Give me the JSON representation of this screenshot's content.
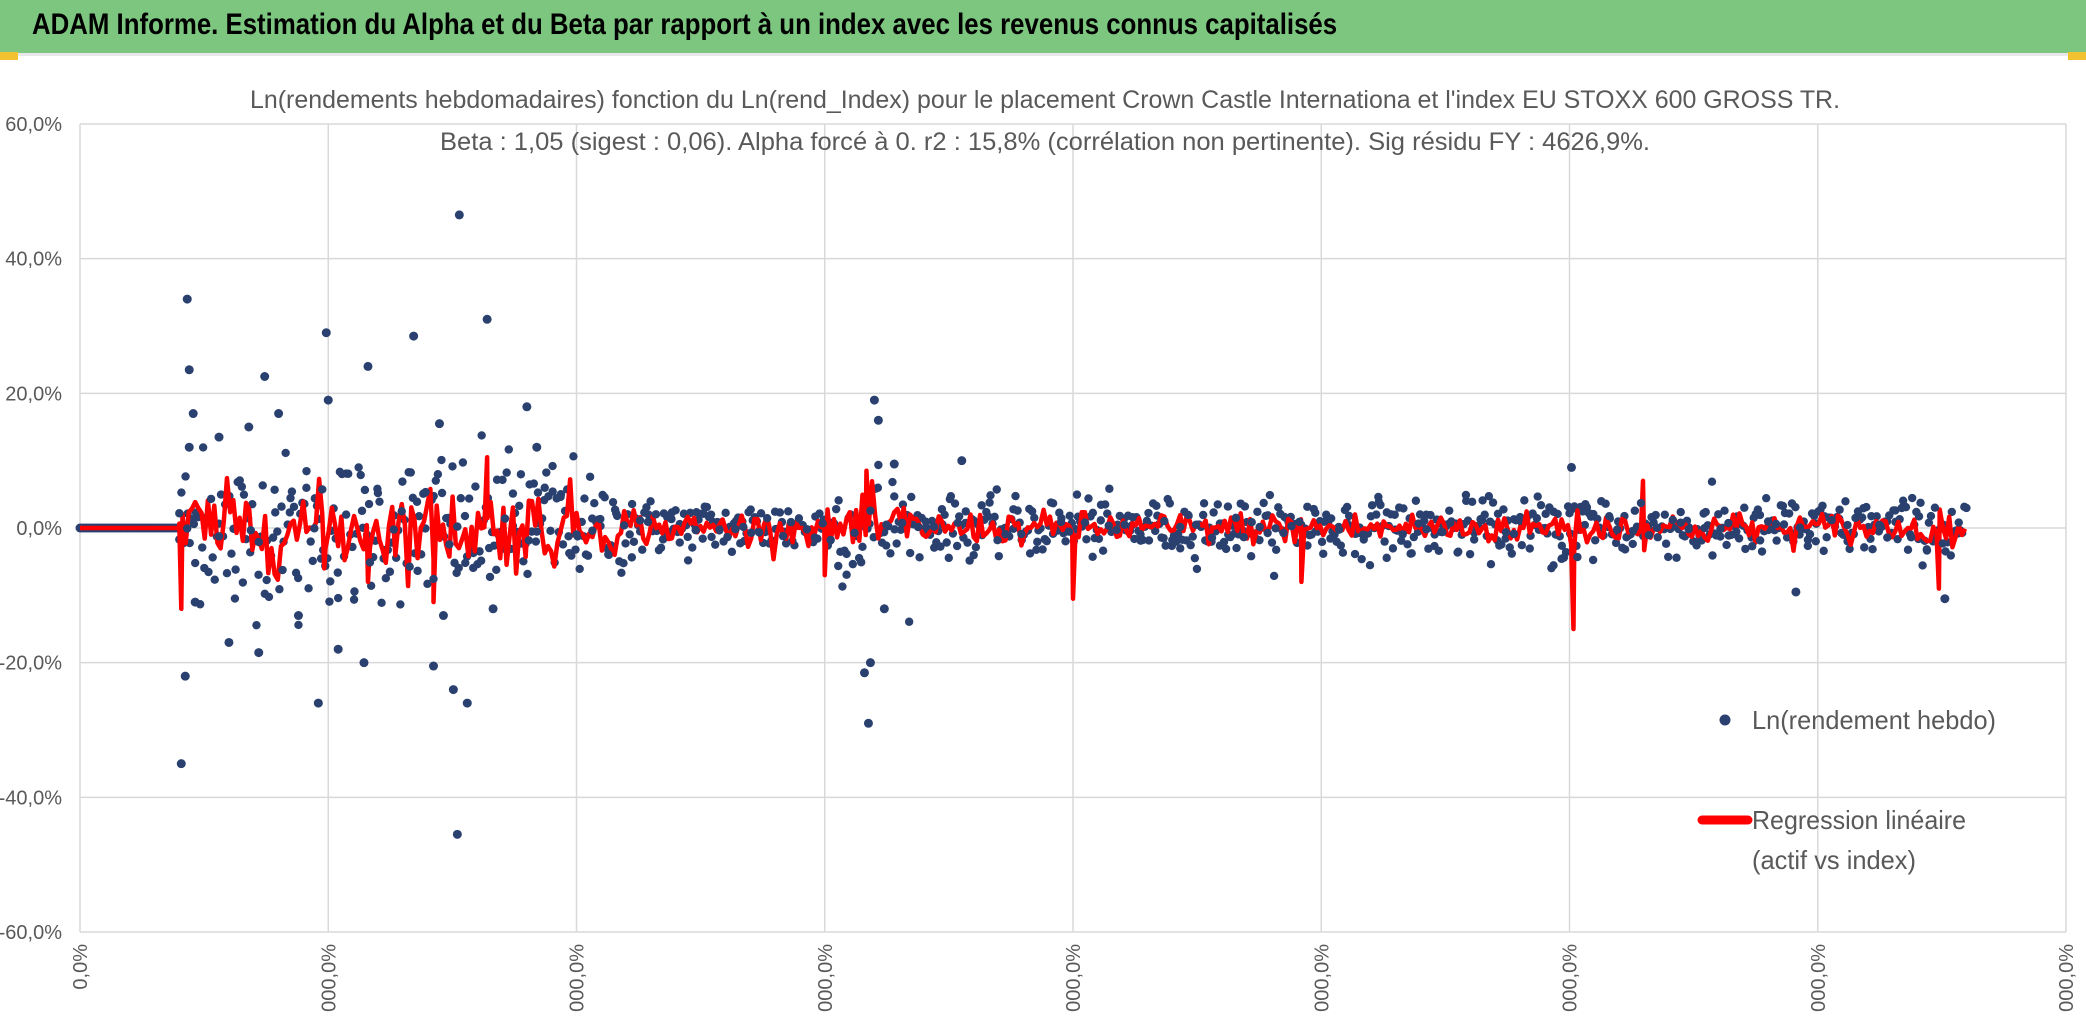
{
  "banner": {
    "title": "ADAM Informe. Estimation du Alpha et du Beta par rapport à un index avec les revenus connus capitalisés",
    "background": "#7dc67f",
    "corner_color": "#f2c230"
  },
  "chart_data": {
    "type": "scatter",
    "title": "Ln(rendements hebdomadaires) fonction du Ln(rend_Index) pour le placement Crown Castle Internationa et l'index EU STOXX 600 GROSS TR.",
    "subtitle": "Beta : 1,05 (sigest : 0,06). Alpha forcé à 0. r2 : 15,8% (corrélation non pertinente). Sig résidu FY : 4626,9%.",
    "xlabel": "",
    "ylabel": "",
    "ylim": [
      -60,
      60
    ],
    "y_ticks": [
      "60,0%",
      "40,0%",
      "20,0%",
      "0,0%",
      "-20,0%",
      "-40,0%",
      "-60,0%"
    ],
    "x_ticks": [
      "0,0%",
      "000,0%",
      "000,0%",
      "000,0%",
      "000,0%",
      "000,0%",
      "000,0%",
      "000,0%",
      "000,0%"
    ],
    "grid": true,
    "legend": "right",
    "series": [
      {
        "name": "Ln(rendement hebdo)",
        "kind": "points",
        "color": "#2a4170"
      },
      {
        "name": "Regression linéaire (actif vs index)",
        "name_lines": [
          "Regression linéaire",
          "(actif vs index)"
        ],
        "kind": "line",
        "color": "#ff0000"
      }
    ],
    "outliers": [
      {
        "x": 0.054,
        "y": 34
      },
      {
        "x": 0.055,
        "y": 23.5
      },
      {
        "x": 0.051,
        "y": -35
      },
      {
        "x": 0.053,
        "y": -22
      },
      {
        "x": 0.055,
        "y": 12
      },
      {
        "x": 0.057,
        "y": 17
      },
      {
        "x": 0.058,
        "y": -11
      },
      {
        "x": 0.07,
        "y": 13.5
      },
      {
        "x": 0.075,
        "y": -17
      },
      {
        "x": 0.085,
        "y": 15
      },
      {
        "x": 0.09,
        "y": -18.5
      },
      {
        "x": 0.093,
        "y": 22.5
      },
      {
        "x": 0.1,
        "y": 17
      },
      {
        "x": 0.11,
        "y": -13
      },
      {
        "x": 0.12,
        "y": -26
      },
      {
        "x": 0.124,
        "y": 29
      },
      {
        "x": 0.125,
        "y": 19
      },
      {
        "x": 0.13,
        "y": -18
      },
      {
        "x": 0.145,
        "y": 24
      },
      {
        "x": 0.143,
        "y": -20
      },
      {
        "x": 0.168,
        "y": 28.5
      },
      {
        "x": 0.178,
        "y": -20.5
      },
      {
        "x": 0.181,
        "y": 15.5
      },
      {
        "x": 0.183,
        "y": -13
      },
      {
        "x": 0.191,
        "y": 46.5
      },
      {
        "x": 0.19,
        "y": -45.5
      },
      {
        "x": 0.188,
        "y": -24
      },
      {
        "x": 0.195,
        "y": -26
      },
      {
        "x": 0.205,
        "y": 31
      },
      {
        "x": 0.208,
        "y": -12
      },
      {
        "x": 0.225,
        "y": 18
      },
      {
        "x": 0.23,
        "y": 12
      },
      {
        "x": 0.4,
        "y": 19
      },
      {
        "x": 0.402,
        "y": 16
      },
      {
        "x": 0.395,
        "y": -21.5
      },
      {
        "x": 0.398,
        "y": -20
      },
      {
        "x": 0.397,
        "y": -29
      },
      {
        "x": 0.405,
        "y": -12
      },
      {
        "x": 0.41,
        "y": 9.5
      },
      {
        "x": 0.444,
        "y": 10
      },
      {
        "x": 0.751,
        "y": 9
      },
      {
        "x": 0.864,
        "y": -9.5
      },
      {
        "x": 0.939,
        "y": -10.5
      }
    ],
    "regression_spikes": [
      {
        "x": 0.051,
        "y": -12
      },
      {
        "x": 0.123,
        "y": -6
      },
      {
        "x": 0.145,
        "y": -8
      },
      {
        "x": 0.178,
        "y": -11
      },
      {
        "x": 0.205,
        "y": 10.5
      },
      {
        "x": 0.375,
        "y": -7
      },
      {
        "x": 0.396,
        "y": 8.5
      },
      {
        "x": 0.5,
        "y": -10.5
      },
      {
        "x": 0.615,
        "y": -8
      },
      {
        "x": 0.752,
        "y": -15
      },
      {
        "x": 0.787,
        "y": 7
      },
      {
        "x": 0.936,
        "y": -9
      }
    ]
  }
}
